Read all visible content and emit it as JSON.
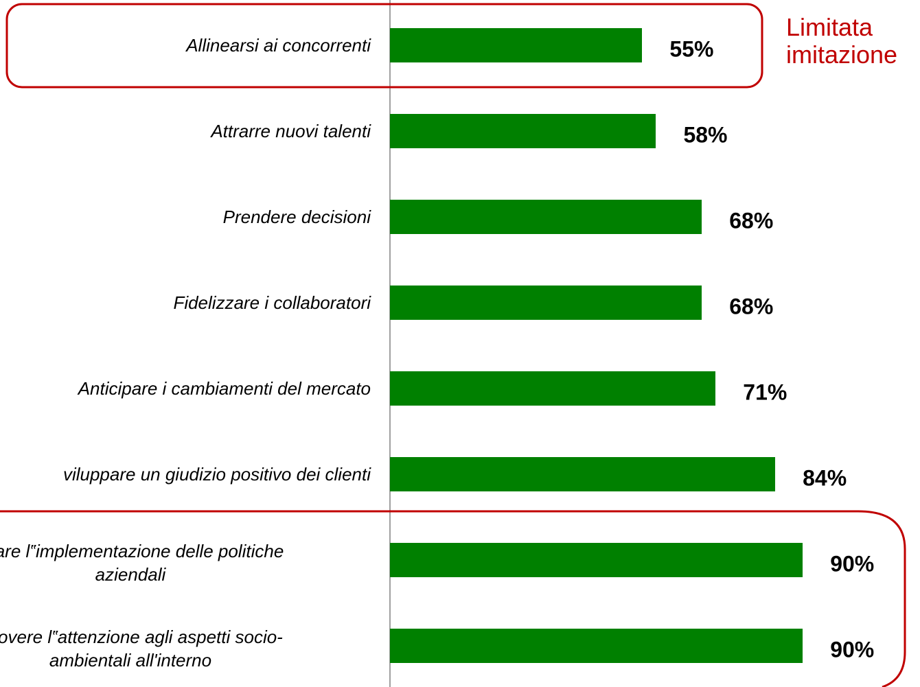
{
  "chart_data": {
    "type": "hbar",
    "categories": [
      "Allinearsi ai concorrenti",
      "Attrarre nuovi talenti",
      "Prendere decisioni",
      "Fidelizzare i collaboratori",
      "Anticipare i cambiamenti del mercato",
      "viluppare un giudizio positivo dei clienti",
      "ficare l‟implementazione delle politiche\naziendali",
      "nuovere l‟attenzione agli aspetti socio-\nambientali all'interno"
    ],
    "values": [
      55,
      58,
      68,
      68,
      71,
      84,
      90,
      90
    ],
    "value_labels": [
      "55%",
      "58%",
      "68%",
      "68%",
      "71%",
      "84%",
      "90%",
      "90%"
    ],
    "color": "#008000",
    "xlim": [
      0,
      100
    ],
    "annotation": "Limitata\nimitazione",
    "annotation_color": "#c00000"
  }
}
